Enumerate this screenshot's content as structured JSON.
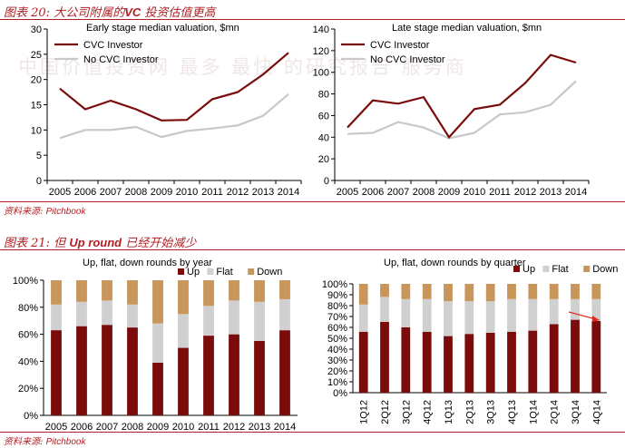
{
  "figure20": {
    "label": "图表 20:",
    "title_pre": "大公司附属的",
    "title_latin": "VC",
    "title_post": "投资估值更高",
    "source_label": "资料来源:",
    "source_value": "Pitchbook"
  },
  "figure21": {
    "label": "图表 21:",
    "title_pre": "但",
    "title_latin": "Up round",
    "title_post": "已经开始减少",
    "source_label": "资料来源:",
    "source_value": "Pitchbook"
  },
  "watermark": "中国价值投资网  最多  最快  的研究报告  服务商",
  "colors": {
    "up": "#7b0c0c",
    "flat": "#d0d0d0",
    "down": "#c8955a",
    "cvc": "#7b0c0c",
    "nocvc": "#c8c8c8",
    "arrow": "#e8261c"
  },
  "chart_data": [
    {
      "id": "early",
      "type": "line",
      "title": "Early stage median valuation, $mn",
      "categories": [
        "2005",
        "2006",
        "2007",
        "2008",
        "2009",
        "2010",
        "2011",
        "2012",
        "2013",
        "2014"
      ],
      "ylim": [
        0,
        30
      ],
      "yticks": [
        0,
        5,
        10,
        15,
        20,
        25,
        30
      ],
      "legend": "top-left",
      "series": [
        {
          "name": "CVC Investor",
          "color": "#7b0c0c",
          "values": [
            18.2,
            14.1,
            15.8,
            14.1,
            11.9,
            12.0,
            16.1,
            17.5,
            21.0,
            25.3
          ]
        },
        {
          "name": "No CVC Investor",
          "color": "#c8c8c8",
          "values": [
            8.4,
            10.0,
            10.0,
            10.6,
            8.6,
            9.8,
            10.3,
            10.9,
            12.8,
            17.1
          ]
        }
      ]
    },
    {
      "id": "late",
      "type": "line",
      "title": "Late stage median valuation, $mn",
      "categories": [
        "2005",
        "2006",
        "2007",
        "2008",
        "2009",
        "2010",
        "2011",
        "2012",
        "2013",
        "2014"
      ],
      "ylim": [
        0,
        140
      ],
      "yticks": [
        0,
        20,
        40,
        60,
        80,
        100,
        120,
        140
      ],
      "legend": "top-left",
      "series": [
        {
          "name": "CVC Investor",
          "color": "#7b0c0c",
          "values": [
            49,
            74,
            71,
            77,
            40,
            66,
            70,
            90,
            116,
            109
          ]
        },
        {
          "name": "No CVC Investor",
          "color": "#c8c8c8",
          "values": [
            43,
            44,
            54,
            49,
            39,
            44,
            61,
            63,
            70,
            92
          ]
        }
      ]
    },
    {
      "id": "year",
      "type": "bar",
      "stacked": "percent",
      "title": "Up, flat, down rounds by year",
      "categories": [
        "2005",
        "2006",
        "2007",
        "2008",
        "2009",
        "2010",
        "2011",
        "2012",
        "2013",
        "2014"
      ],
      "ylim": [
        0,
        100
      ],
      "yticks": [
        "0%",
        "20%",
        "40%",
        "60%",
        "80%",
        "100%"
      ],
      "legend": "top",
      "series": [
        {
          "name": "Up",
          "color": "#7b0c0c",
          "values": [
            63,
            66,
            67,
            65,
            39,
            50,
            59,
            60,
            55,
            63
          ]
        },
        {
          "name": "Flat",
          "color": "#d0d0d0",
          "values": [
            19,
            18,
            18,
            17,
            29,
            25,
            22,
            25,
            29,
            23
          ]
        },
        {
          "name": "Down",
          "color": "#c8955a",
          "values": [
            18,
            16,
            15,
            18,
            32,
            25,
            19,
            15,
            16,
            14
          ]
        }
      ]
    },
    {
      "id": "quarter",
      "type": "bar",
      "stacked": "percent",
      "title": "Up, flat, down rounds by quarter",
      "categories": [
        "1Q12",
        "2Q12",
        "3Q12",
        "4Q12",
        "1Q13",
        "2Q13",
        "3Q13",
        "4Q13",
        "1Q14",
        "2Q14",
        "3Q14",
        "4Q14"
      ],
      "ylim": [
        0,
        100
      ],
      "yticks": [
        "0%",
        "10%",
        "20%",
        "30%",
        "40%",
        "50%",
        "60%",
        "70%",
        "80%",
        "90%",
        "100%"
      ],
      "legend": "top-right",
      "annotation": "arrow",
      "series": [
        {
          "name": "Up",
          "color": "#7b0c0c",
          "values": [
            56,
            65,
            60,
            56,
            52,
            54,
            55,
            56,
            57,
            63,
            67,
            66
          ]
        },
        {
          "name": "Flat",
          "color": "#d0d0d0",
          "values": [
            25,
            23,
            26,
            30,
            32,
            30,
            29,
            30,
            29,
            23,
            19,
            20
          ]
        },
        {
          "name": "Down",
          "color": "#c8955a",
          "values": [
            19,
            12,
            14,
            14,
            16,
            16,
            16,
            14,
            14,
            14,
            14,
            14
          ]
        }
      ]
    }
  ]
}
